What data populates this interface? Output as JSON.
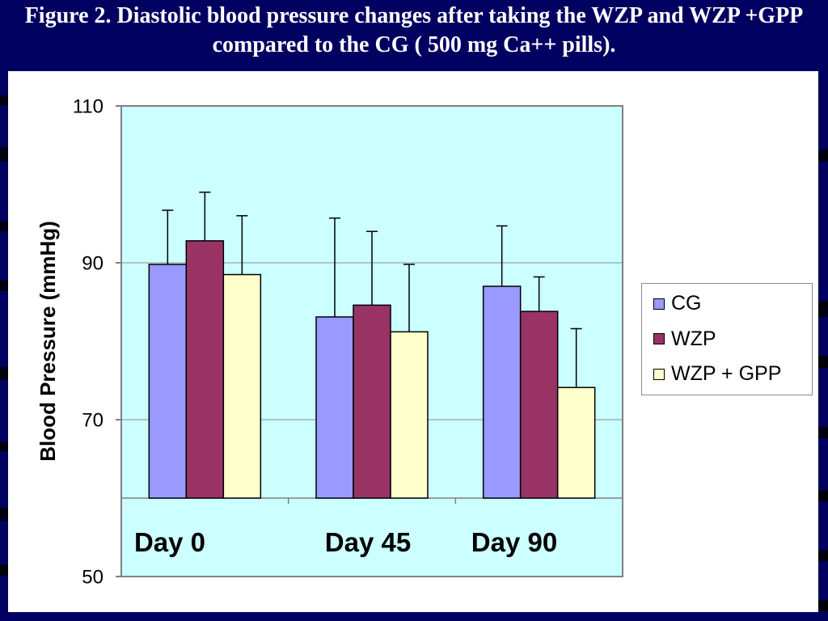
{
  "colors": {
    "slide_background": "#000060",
    "chart_area": "#ffffff",
    "title_text": "#ffffff"
  },
  "chart_data": {
    "type": "bar",
    "title": "Figure 2. Diastolic blood pressure changes after taking the WZP and WZP +GPP compared to the CG ( 500 mg Ca++ pills).",
    "ylabel": "Blood Pressure (mmHg)",
    "categories": [
      "Day 0",
      "Day 45",
      "Day 90"
    ],
    "series": [
      {
        "name": "CG",
        "color": "#9999ff",
        "values": [
          89.8,
          83.1,
          87.0
        ],
        "error_plus": [
          6.9,
          12.6,
          7.7
        ]
      },
      {
        "name": "WZP",
        "color": "#993366",
        "values": [
          92.8,
          84.6,
          83.8
        ],
        "error_plus": [
          6.2,
          9.4,
          4.4
        ]
      },
      {
        "name": "WZP + GPP",
        "color": "#ffffcc",
        "values": [
          88.5,
          81.2,
          74.1
        ],
        "error_plus": [
          7.5,
          8.6,
          7.5
        ]
      }
    ],
    "ylim": [
      50,
      110
    ],
    "yticks": [
      110,
      90,
      70,
      50
    ],
    "x_axis_crosses_at": 60,
    "error_bars": "plus",
    "grid": true,
    "legend": "right",
    "plot_background": "#ccffff"
  }
}
